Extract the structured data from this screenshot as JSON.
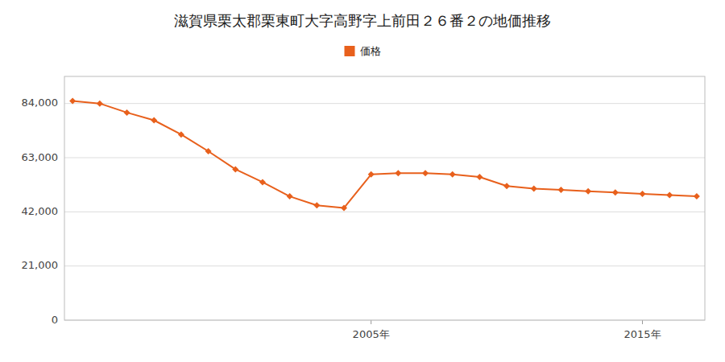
{
  "chart_data": {
    "type": "line",
    "title": "滋賀県栗太郡栗東町大字高野字上前田２６番２の地価推移",
    "x": [
      1994,
      1995,
      1996,
      1997,
      1998,
      1999,
      2000,
      2001,
      2002,
      2003,
      2004,
      2005,
      2006,
      2007,
      2008,
      2009,
      2010,
      2011,
      2012,
      2013,
      2014,
      2015,
      2016,
      2017
    ],
    "series": [
      {
        "name": "価格",
        "color": "#e8601c",
        "marker": "diamond",
        "values": [
          85000,
          84000,
          80500,
          77500,
          72000,
          65500,
          58500,
          53500,
          48000,
          44500,
          43500,
          56500,
          57000,
          57000,
          56500,
          55500,
          52000,
          51000,
          50500,
          50000,
          49500,
          49000,
          48500,
          48000
        ]
      }
    ],
    "xlim": [
      1993.7,
      2017.3
    ],
    "xticks": [
      {
        "value": 2005,
        "label": "2005年"
      },
      {
        "value": 2015,
        "label": "2015年"
      }
    ],
    "ylim": [
      0,
      94500
    ],
    "yticks": [
      0,
      {
        "value": 21000,
        "label": "21,000"
      },
      {
        "value": 42000,
        "label": "42,000"
      },
      {
        "value": 63000,
        "label": "63,000"
      },
      {
        "value": 84000,
        "label": "84,000"
      }
    ],
    "grid": true,
    "legend": "top"
  }
}
